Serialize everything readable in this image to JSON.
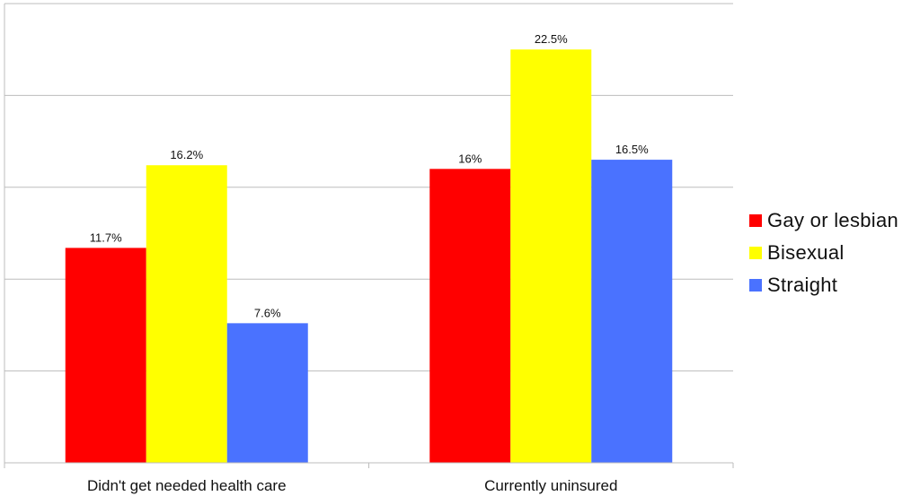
{
  "chart_data": {
    "type": "bar",
    "categories": [
      "Didn't get needed health care",
      "Currently uninsured"
    ],
    "series": [
      {
        "name": "Gay or lesbian",
        "values": [
          11.7,
          16.0
        ],
        "labels": [
          "11.7%",
          "16%"
        ],
        "color": "#ff0000"
      },
      {
        "name": "Bisexual",
        "values": [
          16.2,
          22.5
        ],
        "labels": [
          "16.2%",
          "22.5%"
        ],
        "color": "#ffff00"
      },
      {
        "name": "Straight",
        "values": [
          7.6,
          16.5
        ],
        "labels": [
          "7.6%",
          "16.5%"
        ],
        "color": "#4a72ff"
      }
    ],
    "ylim": [
      0,
      25
    ],
    "ygrid_step": 5,
    "grid": true,
    "legend": "right",
    "ytick_labels_visible": false
  }
}
